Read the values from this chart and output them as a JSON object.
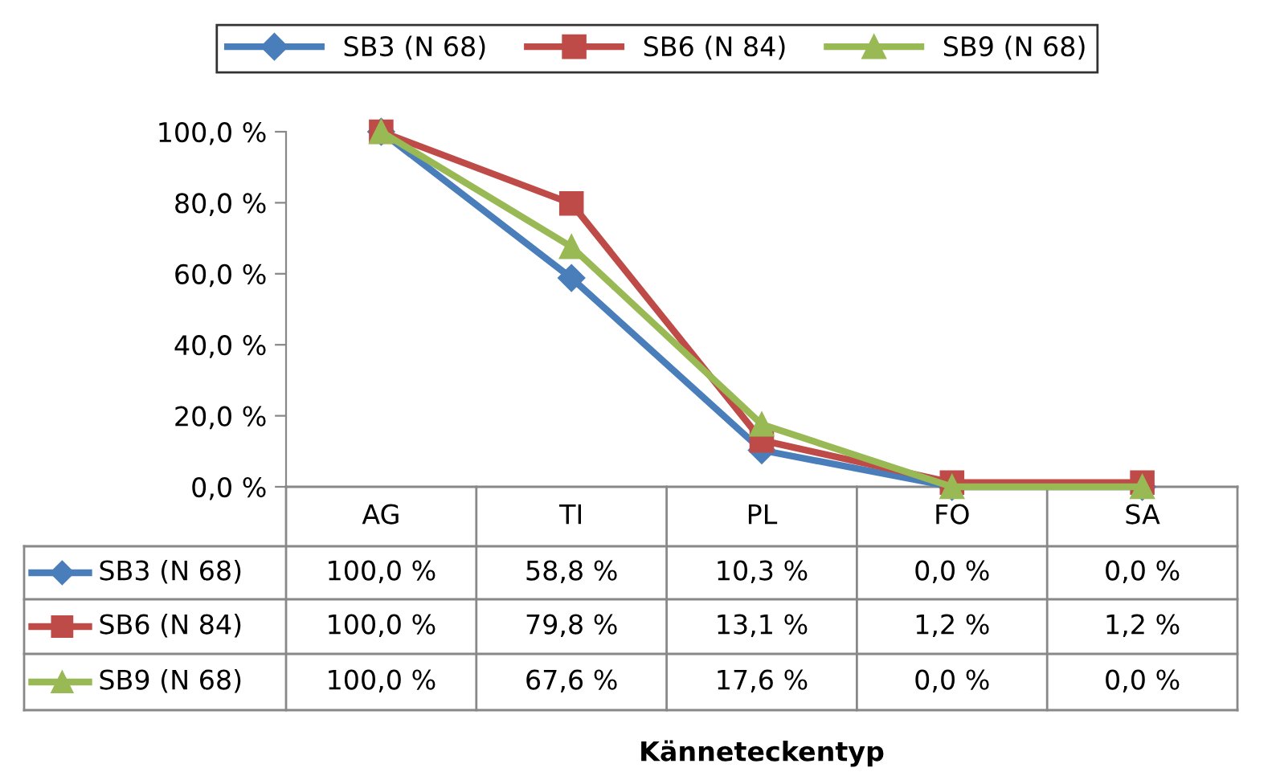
{
  "chart_data": {
    "type": "line",
    "annotations": [
      "Känneteckentyp"
    ],
    "categories": [
      "AG",
      "TI",
      "PL",
      "FO",
      "SA"
    ],
    "series": [
      {
        "name": "SB3 (N 68)",
        "color": "#4a7ebb",
        "marker": "diamond",
        "values": [
          100.0,
          58.8,
          10.3,
          0.0,
          0.0
        ],
        "value_labels": [
          "100,0 %",
          "58,8 %",
          "10,3 %",
          "0,0 %",
          "0,0 %"
        ]
      },
      {
        "name": "SB6 (N 84)",
        "color": "#be4b48",
        "marker": "square",
        "values": [
          100.0,
          79.8,
          13.1,
          1.2,
          1.2
        ],
        "value_labels": [
          "100,0 %",
          "79,8 %",
          "13,1 %",
          "1,2 %",
          "1,2 %"
        ]
      },
      {
        "name": "SB9 (N 68)",
        "color": "#98b954",
        "marker": "triangle",
        "values": [
          100.0,
          67.6,
          17.6,
          0.0,
          0.0
        ],
        "value_labels": [
          "100,0 %",
          "67,6 %",
          "17,6 %",
          "0,0 %",
          "0,0 %"
        ]
      }
    ],
    "ylim": [
      0,
      100
    ],
    "yticks": [
      {
        "value": 0,
        "label": "0,0 %"
      },
      {
        "value": 20,
        "label": "20,0 %"
      },
      {
        "value": 40,
        "label": "40,0 %"
      },
      {
        "value": 60,
        "label": "60,0 %"
      },
      {
        "value": 80,
        "label": "80,0 %"
      },
      {
        "value": 100,
        "label": "100,0 %"
      }
    ],
    "grid": false,
    "legend": "top",
    "line_style": "solid"
  }
}
